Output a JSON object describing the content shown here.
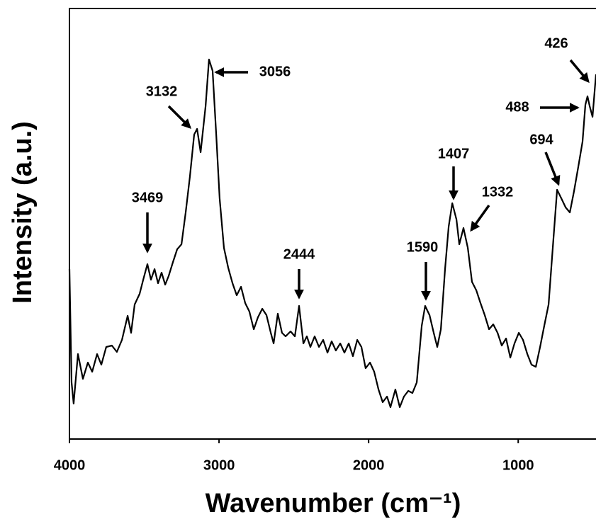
{
  "chart_data": {
    "type": "line",
    "xlabel": "Wavenumber (cm⁻¹)",
    "ylabel": "Intensity (a.u.)",
    "xlim": [
      4000,
      480
    ],
    "ylim": [
      0,
      608
    ],
    "xticks": [
      4000,
      3000,
      2000,
      1000
    ],
    "color": "#000000",
    "x": [
      4000,
      3986,
      3972,
      3943,
      3910,
      3877,
      3848,
      3815,
      3787,
      3754,
      3716,
      3683,
      3649,
      3611,
      3588,
      3564,
      3531,
      3507,
      3479,
      3455,
      3431,
      3408,
      3384,
      3360,
      3337,
      3308,
      3280,
      3251,
      3223,
      3195,
      3166,
      3147,
      3123,
      3090,
      3067,
      3043,
      3019,
      2996,
      2967,
      2939,
      2910,
      2882,
      2853,
      2825,
      2797,
      2768,
      2740,
      2711,
      2683,
      2654,
      2635,
      2607,
      2579,
      2555,
      2522,
      2493,
      2465,
      2436,
      2413,
      2389,
      2361,
      2332,
      2304,
      2275,
      2247,
      2219,
      2190,
      2162,
      2133,
      2105,
      2076,
      2048,
      2020,
      1991,
      1963,
      1934,
      1906,
      1877,
      1854,
      1821,
      1792,
      1764,
      1735,
      1707,
      1678,
      1645,
      1622,
      1593,
      1565,
      1541,
      1517,
      1489,
      1465,
      1441,
      1413,
      1394,
      1366,
      1337,
      1309,
      1280,
      1252,
      1224,
      1195,
      1167,
      1138,
      1110,
      1081,
      1053,
      1025,
      996,
      968,
      939,
      911,
      882,
      854,
      826,
      797,
      769,
      740,
      712,
      683,
      655,
      627,
      598,
      570,
      551,
      537,
      522,
      503,
      480
    ],
    "values": [
      240,
      80,
      50,
      120,
      85,
      108,
      95,
      120,
      105,
      130,
      132,
      123,
      140,
      174,
      150,
      190,
      205,
      225,
      247,
      225,
      240,
      220,
      235,
      218,
      230,
      250,
      268,
      275,
      320,
      370,
      430,
      438,
      405,
      470,
      536,
      520,
      430,
      340,
      270,
      242,
      220,
      203,
      215,
      192,
      180,
      155,
      172,
      184,
      175,
      150,
      135,
      177,
      150,
      145,
      152,
      145,
      188,
      135,
      145,
      130,
      145,
      130,
      140,
      122,
      138,
      125,
      135,
      122,
      135,
      117,
      140,
      130,
      100,
      108,
      95,
      70,
      52,
      60,
      45,
      70,
      45,
      60,
      68,
      65,
      80,
      160,
      188,
      175,
      150,
      130,
      155,
      240,
      300,
      333,
      310,
      275,
      298,
      270,
      222,
      210,
      192,
      175,
      155,
      162,
      150,
      132,
      142,
      115,
      135,
      150,
      140,
      120,
      105,
      102,
      130,
      160,
      190,
      270,
      352,
      340,
      327,
      320,
      350,
      385,
      420,
      472,
      484,
      470,
      455,
      515
    ],
    "annotations": [
      "3056",
      "3132",
      "3469",
      "2444",
      "1590",
      "1407",
      "1332",
      "694",
      "488",
      "426"
    ]
  }
}
